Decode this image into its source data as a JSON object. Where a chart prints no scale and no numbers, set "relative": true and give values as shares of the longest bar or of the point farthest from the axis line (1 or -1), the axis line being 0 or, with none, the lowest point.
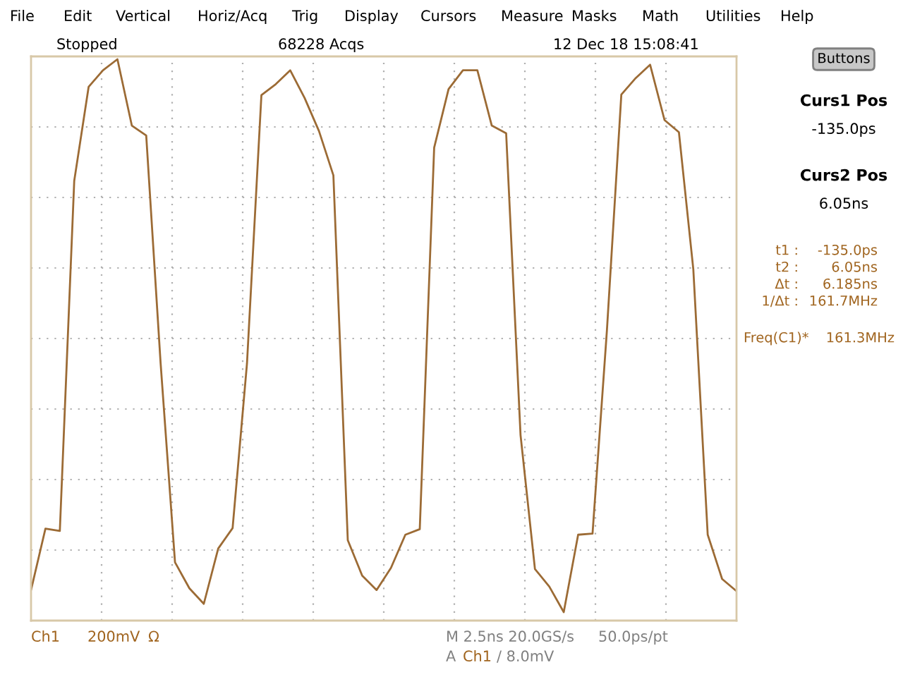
{
  "chart_data": {
    "type": "line",
    "relative": true,
    "categories": [
      null,
      null,
      null,
      null,
      null,
      null,
      null,
      null,
      null,
      null,
      null,
      null,
      null,
      null,
      null,
      null,
      null,
      null,
      null,
      null,
      null,
      null,
      null,
      null,
      null,
      null,
      null,
      null,
      null,
      null,
      null,
      null,
      null,
      null,
      null,
      null,
      null,
      null,
      null,
      null,
      null,
      null,
      null,
      null,
      null,
      null,
      null,
      null,
      null,
      null
    ],
    "series": [
      {
        "color": "#9c6b35",
        "values": [
          0.04,
          0.151,
          0.147,
          0.78,
          0.95,
          0.98,
          1.0,
          0.88,
          0.862,
          0.45,
          0.09,
          0.043,
          0.015,
          0.115,
          0.152,
          0.45,
          0.935,
          0.955,
          0.98,
          0.93,
          0.87,
          0.79,
          0.13,
          0.066,
          0.04,
          0.08,
          0.14,
          0.15,
          0.84,
          0.946,
          0.98,
          0.98,
          0.88,
          0.866,
          0.32,
          0.078,
          0.046,
          0.0,
          0.14,
          0.142,
          0.51,
          0.936,
          0.966,
          0.99,
          0.89,
          0.868,
          0.62,
          0.14,
          0.06,
          0.038
        ]
      }
    ],
    "tick_labels": false,
    "grid": true,
    "line_style": "solid",
    "marker": "none",
    "annotations": [
      "File",
      "Edit",
      "Vertical",
      "Horiz/Acq",
      "Trig",
      "Display",
      "Cursors",
      "Measure",
      "Masks",
      "Math",
      "Utilities",
      "Help",
      "Stopped",
      "68228 Acqs",
      "12 Dec 18 15:08:41",
      "Buttons",
      "Curs1 Pos",
      "-135.0ps",
      "Curs2 Pos",
      "6.05ns",
      "t1 :",
      "-135.0ps",
      "t2 :",
      "6.05ns",
      "Δt :",
      "6.185ns",
      "1/Δt :",
      "161.7MHz",
      "Freq(C1)*",
      "161.3MHz",
      "Ch1",
      "200mV",
      "Ω",
      "M 2.5ns 20.0GS/s",
      "50.0ps/pt",
      "A",
      "Ch1",
      "/ 8.0mV"
    ]
  }
}
